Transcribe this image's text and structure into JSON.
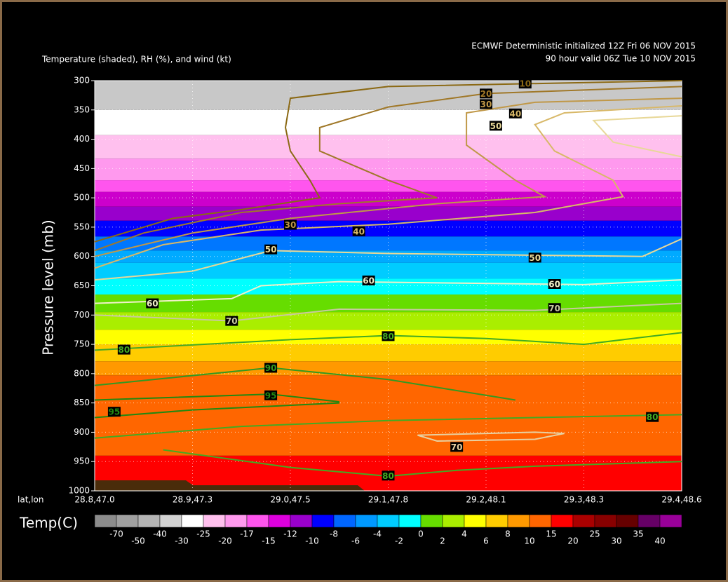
{
  "chart_data": {
    "type": "cross-section",
    "title": "Temperature (shaded), RH (%), and wind (kt)",
    "subtitle": [
      "ECMWF Deterministic initialized 12Z Fri 06 NOV 2015",
      "90 hour valid 06Z Tue 10 NOV 2015"
    ],
    "y_label": "Pressure level (mb)",
    "x_label": "lat,lon",
    "categories": [
      "28.8,47.0",
      "28.9,47.3",
      "29.0,47.5",
      "29.1,47.8",
      "29.2,48.1",
      "29.3,48.3",
      "29.4,48.6"
    ],
    "ylim": [
      300,
      1000
    ],
    "yticks": [
      300,
      350,
      400,
      450,
      500,
      550,
      600,
      650,
      700,
      750,
      800,
      850,
      900,
      950,
      1000
    ],
    "grid": true,
    "bands": [
      {
        "top": 300,
        "bottom": 350,
        "color": "#c8c8c8"
      },
      {
        "top": 350,
        "bottom": 393,
        "color": "#ffffff"
      },
      {
        "top": 393,
        "bottom": 433,
        "color": "#ffc0ee"
      },
      {
        "top": 433,
        "bottom": 470,
        "color": "#ff99ee"
      },
      {
        "top": 470,
        "bottom": 490,
        "color": "#ff55ee"
      },
      {
        "top": 490,
        "bottom": 515,
        "color": "#cc00cc"
      },
      {
        "top": 515,
        "bottom": 539,
        "color": "#9900cc"
      },
      {
        "top": 539,
        "bottom": 566,
        "color": "#0000ff"
      },
      {
        "top": 566,
        "bottom": 590,
        "color": "#0077ff"
      },
      {
        "top": 590,
        "bottom": 611,
        "color": "#00aaff"
      },
      {
        "top": 611,
        "bottom": 638,
        "color": "#00ccff"
      },
      {
        "top": 638,
        "bottom": 665,
        "color": "#00ffff"
      },
      {
        "top": 665,
        "bottom": 695,
        "color": "#66dd00"
      },
      {
        "top": 695,
        "bottom": 725,
        "color": "#aaee00"
      },
      {
        "top": 725,
        "bottom": 750,
        "color": "#ffff00"
      },
      {
        "top": 750,
        "bottom": 779,
        "color": "#ffcc00"
      },
      {
        "top": 779,
        "bottom": 803,
        "color": "#ff9900"
      },
      {
        "top": 803,
        "bottom": 940,
        "color": "#ff6600"
      },
      {
        "top": 940,
        "bottom": 1000,
        "color": "#ff0000"
      }
    ],
    "contours": [
      {
        "level": 10,
        "color": "#8b6914",
        "x": [
          6,
          3,
          2,
          1.95,
          2,
          2.2,
          2.3,
          1.5,
          0.8,
          0
        ],
        "p": [
          300,
          310,
          330,
          380,
          420,
          470,
          500,
          520,
          535,
          575
        ],
        "labels_x": [
          4.4
        ],
        "labels_p": [
          305
        ]
      },
      {
        "level": 20,
        "color": "#a07828",
        "x": [
          6,
          4,
          3,
          2.3,
          2.3,
          3,
          3.5,
          2.5,
          1.5,
          0.5,
          0
        ],
        "p": [
          310,
          322,
          345,
          380,
          420,
          470,
          500,
          510,
          525,
          560,
          590
        ],
        "labels_x": [
          4.0
        ],
        "labels_p": [
          322
        ]
      },
      {
        "level": 30,
        "color": "#c09848",
        "x": [
          6,
          4.5,
          3.8,
          3.8,
          4.3,
          4.6,
          3.5,
          2,
          1,
          0
        ],
        "p": [
          330,
          337,
          355,
          410,
          470,
          498,
          510,
          535,
          560,
          600
        ],
        "labels_x": [
          4.0,
          2.0
        ],
        "labels_p": [
          340,
          546
        ]
      },
      {
        "level": 40,
        "color": "#d8b868",
        "x": [
          6,
          4.8,
          4.5,
          4.7,
          5.3,
          5.4,
          4.5,
          3,
          1.7,
          0.7,
          0
        ],
        "p": [
          343,
          355,
          375,
          420,
          470,
          498,
          525,
          545,
          555,
          580,
          620
        ],
        "labels_x": [
          4.3,
          2.7
        ],
        "labels_p": [
          356,
          557
        ]
      },
      {
        "level": 50,
        "color": "#e8d898",
        "x": [
          6,
          5.1,
          5.3,
          6
        ],
        "p": [
          360,
          368,
          405,
          430
        ],
        "labels_x": [
          4.1
        ],
        "labels_p": [
          377
        ]
      },
      {
        "level": 50,
        "color": "#e8d898",
        "x": [
          0,
          1,
          1.8,
          3,
          5.6,
          6
        ],
        "p": [
          640,
          625,
          590,
          595,
          600,
          570
        ],
        "labels_x": [
          1.8,
          4.5
        ],
        "labels_p": [
          588,
          602
        ]
      },
      {
        "level": 60,
        "color": "#f0f0c8",
        "x": [
          0,
          1.4,
          1.7,
          2.5,
          5,
          6
        ],
        "p": [
          680,
          672,
          650,
          643,
          648,
          640
        ],
        "labels_x": [
          0.59,
          2.8,
          4.7
        ],
        "labels_p": [
          680,
          641,
          647
        ]
      },
      {
        "level": 70,
        "color": "#c8c8a0",
        "x": [
          0,
          1.4,
          2.5,
          4.5,
          6
        ],
        "p": [
          700,
          710,
          690,
          692,
          680
        ],
        "labels_x": [
          1.4,
          4.7
        ],
        "labels_p": [
          710,
          688
        ]
      },
      {
        "level": 70,
        "color": "#e8d0a0",
        "x": [
          3.3,
          4.5,
          4.8,
          4.5,
          3.5,
          3.3
        ],
        "p": [
          905,
          900,
          902,
          912,
          915,
          905
        ],
        "labels_x": [
          3.7
        ],
        "labels_p": [
          925
        ]
      },
      {
        "level": 80,
        "color": "#44aa22",
        "x": [
          0,
          2,
          3,
          4,
          5,
          6
        ],
        "p": [
          760,
          742,
          735,
          740,
          750,
          730
        ],
        "labels_x": [
          0.3,
          3.0
        ],
        "labels_p": [
          759,
          736
        ]
      },
      {
        "level": 80,
        "color": "#44aa22",
        "x": [
          0,
          1.5,
          3,
          4.5,
          6
        ],
        "p": [
          910,
          890,
          880,
          875,
          870
        ],
        "labels_x": [
          5.7
        ],
        "labels_p": [
          874
        ]
      },
      {
        "level": 80,
        "color": "#44aa22",
        "x": [
          0.7,
          2,
          3,
          3.7,
          4.5,
          6
        ],
        "p": [
          930,
          960,
          975,
          965,
          958,
          950
        ],
        "labels_x": [
          3.0
        ],
        "labels_p": [
          974
        ]
      },
      {
        "level": 90,
        "color": "#339922",
        "x": [
          0,
          1.8,
          3,
          4.3
        ],
        "p": [
          820,
          790,
          810,
          845
        ],
        "labels_x": [
          1.8
        ],
        "labels_p": [
          790
        ]
      },
      {
        "level": 95,
        "color": "#228811",
        "x": [
          0,
          1.8,
          2.5
        ],
        "p": [
          845,
          835,
          848
        ],
        "labels_x": [
          1.8
        ],
        "labels_p": [
          837
        ]
      },
      {
        "level": 95,
        "color": "#228811",
        "x": [
          0,
          1,
          2.5
        ],
        "p": [
          875,
          862,
          850
        ],
        "labels_x": [
          0.2
        ],
        "labels_p": [
          865
        ]
      }
    ],
    "colorbar": {
      "label": "Temp(C)",
      "colors": [
        "#8c8c8c",
        "#a0a0a0",
        "#b4b4b4",
        "#d2d2d2",
        "#ffffff",
        "#ffc0ee",
        "#ff99ee",
        "#ff55ee",
        "#dd00dd",
        "#9900cc",
        "#0000ff",
        "#0066ff",
        "#0099ff",
        "#00ccff",
        "#00ffff",
        "#66dd00",
        "#aaee00",
        "#ffff00",
        "#ffcc00",
        "#ff9900",
        "#ff6600",
        "#ff0000",
        "#aa0000",
        "#880000",
        "#660000",
        "#660066",
        "#990099"
      ],
      "ticks": [
        -70,
        -50,
        -40,
        -30,
        -25,
        -20,
        -17,
        -15,
        -12,
        -10,
        -8,
        -6,
        -4,
        -2,
        0,
        2,
        4,
        6,
        8,
        10,
        15,
        20,
        25,
        30,
        35,
        40
      ]
    }
  }
}
